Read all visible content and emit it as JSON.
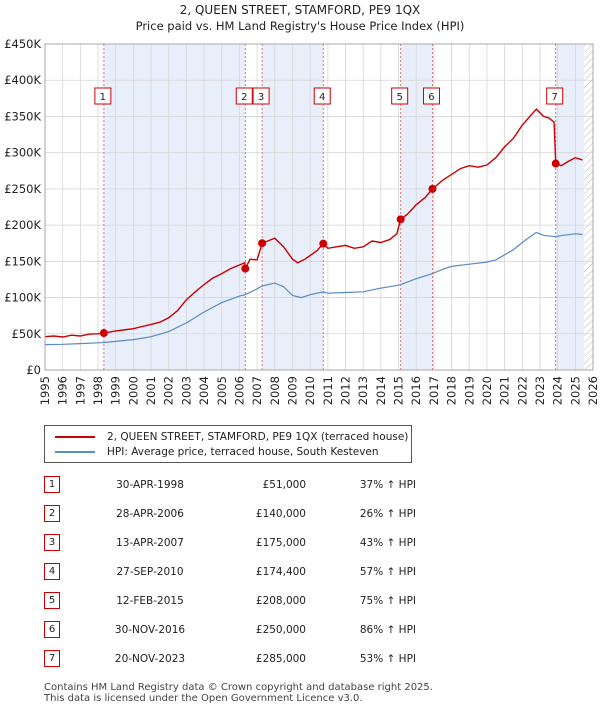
{
  "chart_data": {
    "type": "line",
    "title": "2, QUEEN STREET, STAMFORD, PE9 1QX",
    "subtitle": "Price paid vs. HM Land Registry's House Price Index (HPI)",
    "xlim": [
      1995,
      2026
    ],
    "ylim": [
      0,
      450000
    ],
    "y_ticks": [
      {
        "value": 0,
        "label": "£0"
      },
      {
        "value": 50000,
        "label": "£50K"
      },
      {
        "value": 100000,
        "label": "£100K"
      },
      {
        "value": 150000,
        "label": "£150K"
      },
      {
        "value": 200000,
        "label": "£200K"
      },
      {
        "value": 250000,
        "label": "£250K"
      },
      {
        "value": 300000,
        "label": "£300K"
      },
      {
        "value": 350000,
        "label": "£350K"
      },
      {
        "value": 400000,
        "label": "£400K"
      },
      {
        "value": 450000,
        "label": "£450K"
      }
    ],
    "x_ticks": [
      "1995",
      "1996",
      "1997",
      "1998",
      "1999",
      "2000",
      "2001",
      "2002",
      "2003",
      "2004",
      "2005",
      "2006",
      "2007",
      "2008",
      "2009",
      "2010",
      "2011",
      "2012",
      "2013",
      "2014",
      "2015",
      "2016",
      "2017",
      "2018",
      "2019",
      "2020",
      "2021",
      "2022",
      "2023",
      "2024",
      "2025",
      "2026"
    ],
    "shaded_periods": [
      [
        1998.33,
        2006.33
      ],
      [
        2007.28,
        2010.74
      ],
      [
        2015.12,
        2016.92
      ],
      [
        2023.89,
        2025.5
      ]
    ],
    "future_hatch_from": 2025.5,
    "series": [
      {
        "name": "2, QUEEN STREET, STAMFORD, PE9 1QX (terraced house)",
        "color": "#cc0000",
        "points": [
          [
            1995.0,
            46000
          ],
          [
            1995.5,
            47000
          ],
          [
            1996.0,
            45500
          ],
          [
            1996.5,
            48000
          ],
          [
            1997.0,
            47000
          ],
          [
            1997.5,
            49500
          ],
          [
            1998.0,
            50000
          ],
          [
            1998.33,
            51000
          ],
          [
            1999.0,
            54000
          ],
          [
            2000.0,
            57000
          ],
          [
            2000.5,
            60000
          ],
          [
            2001.0,
            63000
          ],
          [
            2001.5,
            66000
          ],
          [
            2002.0,
            72000
          ],
          [
            2002.5,
            82000
          ],
          [
            2003.0,
            97000
          ],
          [
            2003.5,
            108000
          ],
          [
            2004.0,
            118000
          ],
          [
            2004.5,
            127000
          ],
          [
            2005.0,
            133000
          ],
          [
            2005.5,
            140000
          ],
          [
            2006.0,
            145000
          ],
          [
            2006.3,
            148000
          ],
          [
            2006.33,
            140000
          ],
          [
            2006.6,
            153000
          ],
          [
            2007.0,
            152000
          ],
          [
            2007.28,
            175000
          ],
          [
            2007.6,
            178000
          ],
          [
            2008.0,
            182000
          ],
          [
            2008.5,
            170000
          ],
          [
            2009.0,
            153000
          ],
          [
            2009.3,
            148000
          ],
          [
            2009.7,
            153000
          ],
          [
            2010.0,
            158000
          ],
          [
            2010.4,
            165000
          ],
          [
            2010.74,
            174400
          ],
          [
            2011.0,
            168000
          ],
          [
            2011.5,
            170000
          ],
          [
            2012.0,
            172000
          ],
          [
            2012.5,
            168000
          ],
          [
            2013.0,
            170000
          ],
          [
            2013.5,
            178000
          ],
          [
            2014.0,
            176000
          ],
          [
            2014.5,
            180000
          ],
          [
            2014.9,
            188000
          ],
          [
            2015.12,
            208000
          ],
          [
            2015.5,
            215000
          ],
          [
            2016.0,
            228000
          ],
          [
            2016.5,
            238000
          ],
          [
            2016.92,
            250000
          ],
          [
            2017.5,
            262000
          ],
          [
            2018.0,
            270000
          ],
          [
            2018.5,
            278000
          ],
          [
            2019.0,
            282000
          ],
          [
            2019.5,
            280000
          ],
          [
            2020.0,
            283000
          ],
          [
            2020.5,
            293000
          ],
          [
            2021.0,
            308000
          ],
          [
            2021.5,
            320000
          ],
          [
            2022.0,
            338000
          ],
          [
            2022.5,
            352000
          ],
          [
            2022.8,
            360000
          ],
          [
            2023.2,
            350000
          ],
          [
            2023.5,
            348000
          ],
          [
            2023.8,
            342000
          ],
          [
            2023.89,
            285000
          ],
          [
            2024.2,
            282000
          ],
          [
            2024.6,
            288000
          ],
          [
            2025.0,
            293000
          ],
          [
            2025.4,
            290000
          ]
        ]
      },
      {
        "name": "HPI: Average price, terraced house, South Kesteven",
        "color": "#5b8ac6",
        "points": [
          [
            1995.0,
            35000
          ],
          [
            1996.0,
            35500
          ],
          [
            1997.0,
            36500
          ],
          [
            1998.0,
            37500
          ],
          [
            1998.33,
            38000
          ],
          [
            1999.0,
            39500
          ],
          [
            2000.0,
            42000
          ],
          [
            2001.0,
            46000
          ],
          [
            2002.0,
            53000
          ],
          [
            2003.0,
            65000
          ],
          [
            2004.0,
            80000
          ],
          [
            2005.0,
            93000
          ],
          [
            2006.0,
            102000
          ],
          [
            2006.33,
            104000
          ],
          [
            2007.0,
            112000
          ],
          [
            2007.28,
            116000
          ],
          [
            2008.0,
            120000
          ],
          [
            2008.5,
            115000
          ],
          [
            2009.0,
            103000
          ],
          [
            2009.5,
            100000
          ],
          [
            2010.0,
            104000
          ],
          [
            2010.74,
            108000
          ],
          [
            2011.0,
            106000
          ],
          [
            2012.0,
            107000
          ],
          [
            2013.0,
            108000
          ],
          [
            2014.0,
            113000
          ],
          [
            2015.0,
            117000
          ],
          [
            2015.12,
            118000
          ],
          [
            2016.0,
            126000
          ],
          [
            2016.92,
            133000
          ],
          [
            2017.5,
            139000
          ],
          [
            2018.0,
            143000
          ],
          [
            2019.0,
            146000
          ],
          [
            2020.0,
            149000
          ],
          [
            2020.5,
            152000
          ],
          [
            2021.0,
            159000
          ],
          [
            2021.5,
            166000
          ],
          [
            2022.0,
            176000
          ],
          [
            2022.5,
            185000
          ],
          [
            2022.8,
            190000
          ],
          [
            2023.2,
            186000
          ],
          [
            2023.89,
            184000
          ],
          [
            2024.3,
            186000
          ],
          [
            2025.0,
            188000
          ],
          [
            2025.4,
            187000
          ]
        ]
      }
    ],
    "sales": [
      {
        "n": "1",
        "x": 1998.33,
        "y": 51000
      },
      {
        "n": "2",
        "x": 2006.33,
        "y": 140000
      },
      {
        "n": "3",
        "x": 2007.28,
        "y": 175000
      },
      {
        "n": "4",
        "x": 2010.74,
        "y": 174400
      },
      {
        "n": "5",
        "x": 2015.12,
        "y": 208000
      },
      {
        "n": "6",
        "x": 2016.92,
        "y": 250000
      },
      {
        "n": "7",
        "x": 2023.89,
        "y": 285000
      }
    ]
  },
  "legend": {
    "property": "2, QUEEN STREET, STAMFORD, PE9 1QX (terraced house)",
    "hpi": "HPI: Average price, terraced house, South Kesteven"
  },
  "table": [
    {
      "n": "1",
      "date": "30-APR-1998",
      "price": "£51,000",
      "hpi": "37% ↑ HPI"
    },
    {
      "n": "2",
      "date": "28-APR-2006",
      "price": "£140,000",
      "hpi": "26% ↑ HPI"
    },
    {
      "n": "3",
      "date": "13-APR-2007",
      "price": "£175,000",
      "hpi": "43% ↑ HPI"
    },
    {
      "n": "4",
      "date": "27-SEP-2010",
      "price": "£174,400",
      "hpi": "57% ↑ HPI"
    },
    {
      "n": "5",
      "date": "12-FEB-2015",
      "price": "£208,000",
      "hpi": "75% ↑ HPI"
    },
    {
      "n": "6",
      "date": "30-NOV-2016",
      "price": "£250,000",
      "hpi": "86% ↑ HPI"
    },
    {
      "n": "7",
      "date": "20-NOV-2023",
      "price": "£285,000",
      "hpi": "53% ↑ HPI"
    }
  ],
  "footer": {
    "line1": "Contains HM Land Registry data © Crown copyright and database right 2025.",
    "line2": "This data is licensed under the Open Government Licence v3.0."
  }
}
